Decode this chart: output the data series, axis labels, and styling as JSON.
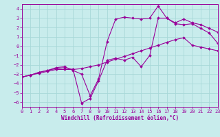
{
  "xlabel": "Windchill (Refroidissement éolien,°C)",
  "bg_color": "#c8ecec",
  "grid_color": "#a8d8d8",
  "line_color": "#990099",
  "xlim": [
    0,
    23
  ],
  "ylim": [
    -6.5,
    4.5
  ],
  "yticks": [
    4,
    3,
    2,
    1,
    0,
    -1,
    -2,
    -3,
    -4,
    -5,
    -6
  ],
  "xticks": [
    0,
    1,
    2,
    3,
    4,
    5,
    6,
    7,
    8,
    9,
    10,
    11,
    12,
    13,
    14,
    15,
    16,
    17,
    18,
    19,
    20,
    21,
    22,
    23
  ],
  "line1_x": [
    0,
    1,
    2,
    3,
    4,
    5,
    6,
    7,
    8,
    9,
    10,
    11,
    12,
    13,
    14,
    15,
    16,
    17,
    18,
    19,
    20,
    21,
    22,
    23
  ],
  "line1_y": [
    -3.3,
    -3.1,
    -2.9,
    -2.7,
    -2.5,
    -2.5,
    -2.5,
    -2.4,
    -2.2,
    -2.0,
    -1.7,
    -1.4,
    -1.1,
    -0.8,
    -0.5,
    -0.2,
    0.1,
    0.4,
    0.7,
    0.9,
    0.1,
    -0.1,
    -0.3,
    -0.5
  ],
  "line2_x": [
    0,
    1,
    2,
    3,
    4,
    5,
    6,
    7,
    8,
    9,
    10,
    11,
    12,
    13,
    14,
    15,
    16,
    17,
    18,
    19,
    20,
    21,
    22,
    23
  ],
  "line2_y": [
    -3.3,
    -3.1,
    -2.8,
    -2.6,
    -2.4,
    -2.3,
    -2.5,
    -6.1,
    -5.6,
    -3.7,
    -1.5,
    -1.3,
    -1.5,
    -1.2,
    -2.2,
    -1.0,
    3.0,
    3.0,
    2.4,
    2.3,
    2.4,
    1.9,
    1.4,
    0.3
  ],
  "line3_x": [
    0,
    1,
    2,
    3,
    4,
    5,
    6,
    7,
    8,
    9,
    10,
    11,
    12,
    13,
    14,
    15,
    16,
    17,
    18,
    19,
    20,
    21,
    22,
    23
  ],
  "line3_y": [
    -3.3,
    -3.1,
    -2.8,
    -2.6,
    -2.3,
    -2.2,
    -2.6,
    -3.0,
    -5.3,
    -3.5,
    0.5,
    2.9,
    3.1,
    3.0,
    2.9,
    3.0,
    4.3,
    3.0,
    2.5,
    2.9,
    2.5,
    2.3,
    1.9,
    1.5
  ],
  "marker": "D",
  "markersize": 2.0,
  "linewidth": 0.8,
  "tick_fontsize": 5.0,
  "xlabel_fontsize": 5.5
}
